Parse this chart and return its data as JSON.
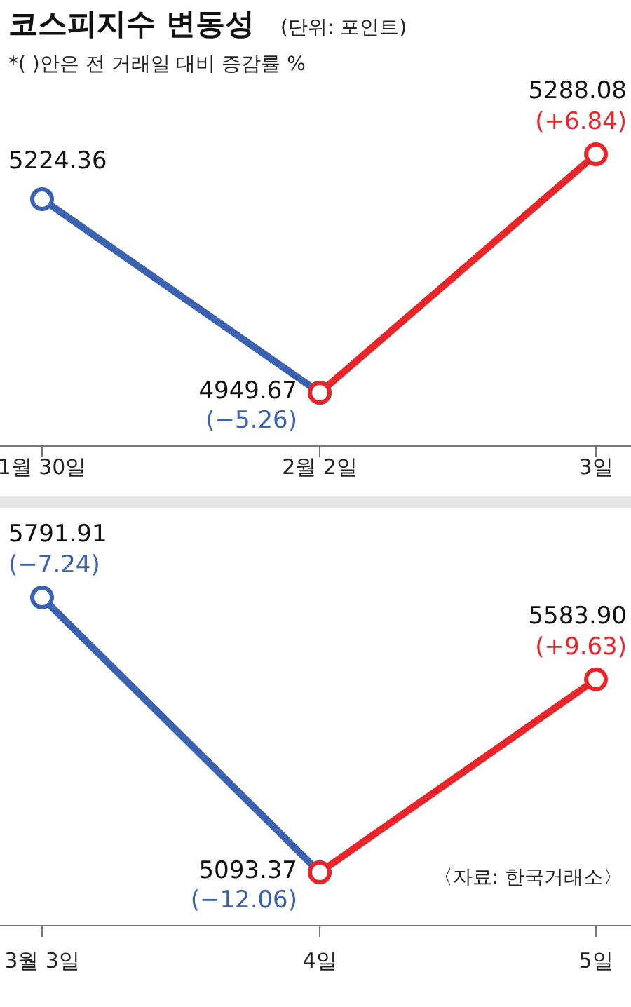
{
  "chart_data": [
    {
      "type": "line",
      "title": "코스피지수 변동성",
      "subtitle": "*( )안은 전 거래일 대비 증감률 %",
      "categories": [
        "1월 30일",
        "2월 2일",
        "3일"
      ],
      "marker": "circle",
      "line_style": "solid",
      "series": [
        {
          "color": "#3a62b0",
          "values": [
            5224.36,
            4949.67,
            null
          ],
          "value_labels": [
            "5224.36",
            "4949.67",
            null
          ]
        },
        {
          "color": "#e8262a",
          "values": [
            null,
            4949.67,
            5288.08
          ],
          "value_labels": [
            null,
            null,
            "5288.08"
          ]
        }
      ],
      "annotations": [
        "(단위: 포인트)",
        {
          "text": "(−5.26)",
          "x": "2월 2일",
          "y": 4949.67
        },
        {
          "text": "(+6.84)",
          "x": "3일",
          "y": 5288.08
        }
      ]
    },
    {
      "type": "line",
      "categories": [
        "3월 3일",
        "4일",
        "5일"
      ],
      "marker": "circle",
      "line_style": "solid",
      "series": [
        {
          "color": "#3a62b0",
          "values": [
            5791.91,
            5093.37,
            null
          ],
          "value_labels": [
            "5791.91",
            "5093.37",
            null
          ]
        },
        {
          "color": "#e8262a",
          "values": [
            null,
            5093.37,
            5583.9
          ],
          "value_labels": [
            null,
            null,
            "5583.90"
          ]
        }
      ],
      "annotations": [
        {
          "text": "(−7.24)",
          "x": "3월 3일",
          "y": 5791.91
        },
        {
          "text": "(−12.06)",
          "x": "4일",
          "y": 5093.37
        },
        {
          "text": "(+9.63)",
          "x": "5일",
          "y": 5583.9
        },
        "〈자료: 한국거래소〉"
      ]
    }
  ]
}
